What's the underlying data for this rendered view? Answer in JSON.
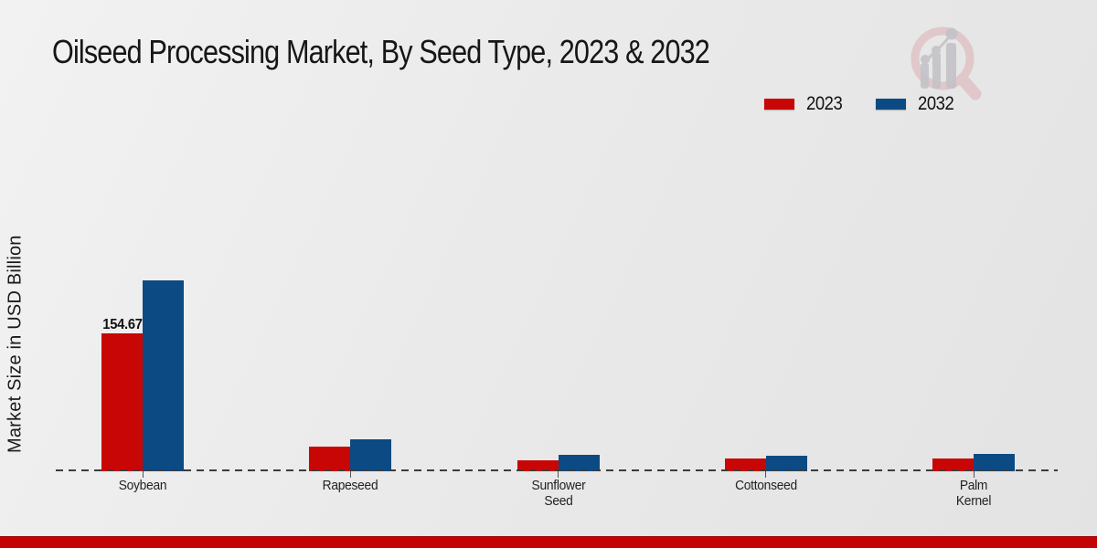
{
  "header": {
    "title": "Oilseed Processing Market, By Seed Type, 2023 & 2032"
  },
  "chart_data": {
    "type": "bar",
    "title": "Oilseed Processing Market, By Seed Type, 2023 & 2032",
    "xlabel": "",
    "ylabel": "Market Size in USD Billion",
    "categories": [
      "Soybean",
      "Rapeseed",
      "Sunflower Seed",
      "Cottonseed",
      "Palm Kernel"
    ],
    "category_label_lines": [
      [
        "Soybean"
      ],
      [
        "Rapeseed"
      ],
      [
        "Sunflower",
        "Seed"
      ],
      [
        "Cottonseed"
      ],
      [
        "Palm",
        "Kernel"
      ]
    ],
    "series": [
      {
        "name": "2023",
        "color": "#c90606",
        "values": [
          154.67,
          28,
          12.5,
          14.5,
          14.5
        ]
      },
      {
        "name": "2032",
        "color": "#0c4a84",
        "values": [
          214,
          36,
          18.5,
          17.5,
          19.5
        ]
      }
    ],
    "bar_value_labels": [
      {
        "series": "2023",
        "category": "Soybean",
        "text": "154.67"
      }
    ],
    "legend_position": "top-right",
    "grid": "off",
    "baseline_style": "dashed",
    "ylim_hidden": true
  },
  "legend": {
    "items": [
      {
        "label": "2023",
        "color": "#c90606"
      },
      {
        "label": "2032",
        "color": "#0c4a84"
      }
    ]
  },
  "branding": {
    "logo_icon": "magnifier-bar-chart-logo",
    "footer_bar_color": "#c40404"
  },
  "colors": {
    "background": "#e9e9e9",
    "series_2023": "#c90606",
    "series_2032": "#0c4a84",
    "axis_dash": "#3c3c3c",
    "text": "#1a1a1a"
  }
}
